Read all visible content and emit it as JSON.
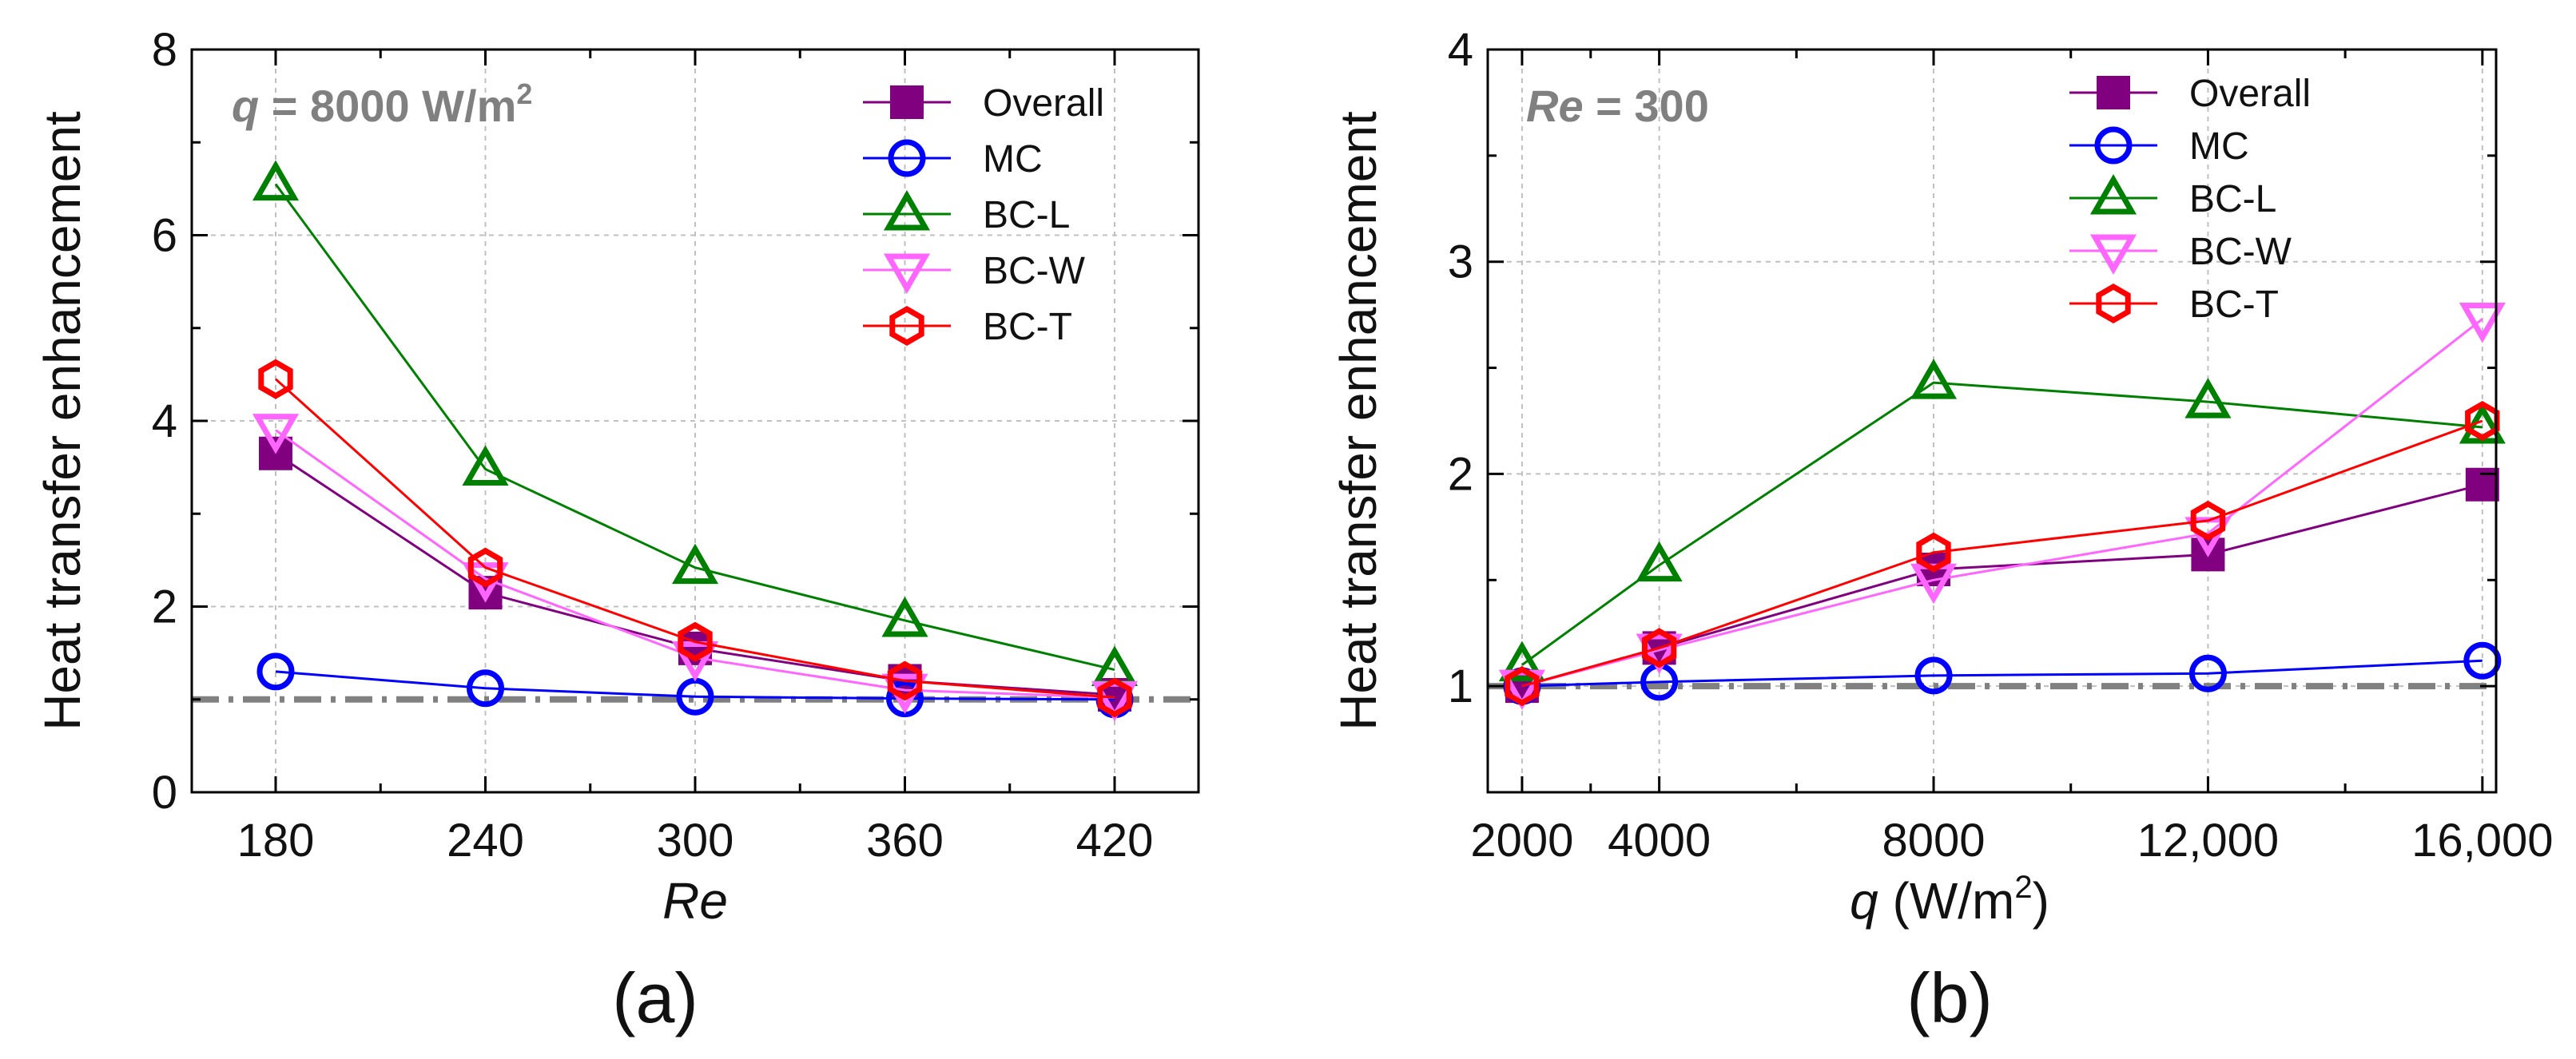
{
  "colors": {
    "Overall": "#800080",
    "MC": "#0000ff",
    "BC-L": "#008000",
    "BC-W": "#ff66ff",
    "BC-T": "#ff0000",
    "reference": "#808080",
    "grid": "#c0c0c0"
  },
  "chart_data": [
    {
      "type": "line",
      "panel_label": "(a)",
      "annotation": {
        "italic": "q",
        "text": " = 8000 W/m",
        "sup": "2"
      },
      "xlabel": "Re",
      "ylabel": "Heat transfer enhancement",
      "x": [
        180,
        240,
        300,
        360,
        420
      ],
      "xticks": [
        "180",
        "240",
        "300",
        "360",
        "420"
      ],
      "xlim": [
        156,
        444
      ],
      "ylim": [
        0,
        8
      ],
      "yticks": [
        "0",
        "2",
        "4",
        "6",
        "8"
      ],
      "yticks_values": [
        0,
        2,
        4,
        6,
        8
      ],
      "grid": true,
      "legend_position": "top-right",
      "reference_line": 1,
      "series": [
        {
          "name": "Overall",
          "marker": "square",
          "values": [
            3.65,
            2.15,
            1.55,
            1.2,
            1.05
          ]
        },
        {
          "name": "MC",
          "marker": "circle",
          "values": [
            1.3,
            1.12,
            1.03,
            1.01,
            1.0
          ]
        },
        {
          "name": "BC-L",
          "marker": "triangle-up",
          "values": [
            6.55,
            3.48,
            2.42,
            1.85,
            1.32
          ]
        },
        {
          "name": "BC-W",
          "marker": "triangle-down",
          "values": [
            3.9,
            2.3,
            1.45,
            1.1,
            1.02
          ]
        },
        {
          "name": "BC-T",
          "marker": "hexagon",
          "values": [
            4.45,
            2.42,
            1.62,
            1.2,
            1.02
          ]
        }
      ]
    },
    {
      "type": "line",
      "panel_label": "(b)",
      "annotation": {
        "italic": "Re",
        "text": " = 300",
        "sup": ""
      },
      "xlabel": "q (W/m2)",
      "ylabel": "Heat transfer enhancement",
      "x": [
        2000,
        4000,
        8000,
        12000,
        16000
      ],
      "xticks": [
        "2000",
        "4000",
        "8000",
        "12,000",
        "16,000"
      ],
      "xlim": [
        1500,
        16200
      ],
      "ylim": [
        0.5,
        4
      ],
      "yticks": [
        "1",
        "2",
        "3",
        "4"
      ],
      "yticks_values": [
        1,
        2,
        3,
        4
      ],
      "grid": true,
      "legend_position": "top-right",
      "reference_line": 1,
      "series": [
        {
          "name": "Overall",
          "marker": "square",
          "values": [
            1.0,
            1.18,
            1.55,
            1.62,
            1.95
          ]
        },
        {
          "name": "MC",
          "marker": "circle",
          "values": [
            1.0,
            1.02,
            1.05,
            1.06,
            1.12
          ]
        },
        {
          "name": "BC-L",
          "marker": "triangle-up",
          "values": [
            1.1,
            1.57,
            2.43,
            2.34,
            2.22
          ]
        },
        {
          "name": "BC-W",
          "marker": "triangle-down",
          "values": [
            1.0,
            1.17,
            1.5,
            1.72,
            2.73
          ]
        },
        {
          "name": "BC-T",
          "marker": "hexagon",
          "values": [
            1.0,
            1.18,
            1.63,
            1.78,
            2.25
          ]
        }
      ]
    }
  ]
}
